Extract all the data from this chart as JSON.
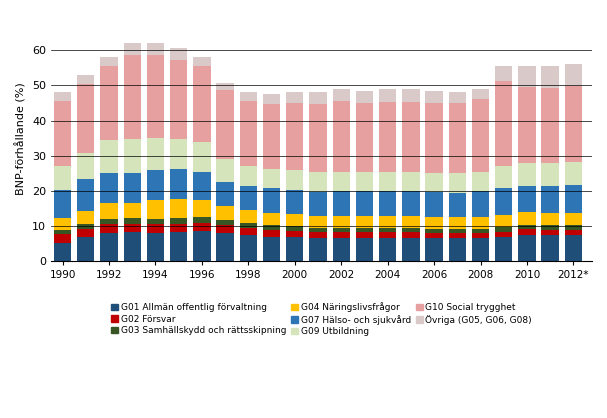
{
  "years": [
    1990,
    1991,
    1992,
    1993,
    1994,
    1995,
    1996,
    1997,
    1998,
    1999,
    2000,
    2001,
    2002,
    2003,
    2004,
    2005,
    2006,
    2007,
    2008,
    2009,
    2010,
    2011,
    2012
  ],
  "G01": [
    5.2,
    6.8,
    8.0,
    8.2,
    8.0,
    8.2,
    8.5,
    8.0,
    7.5,
    7.0,
    6.8,
    6.5,
    6.5,
    6.5,
    6.5,
    6.5,
    6.5,
    6.5,
    6.5,
    6.8,
    7.5,
    7.5,
    7.5
  ],
  "G02": [
    2.5,
    2.5,
    2.5,
    2.5,
    2.5,
    2.5,
    2.5,
    2.3,
    2.1,
    2.0,
    1.9,
    1.8,
    1.8,
    1.8,
    1.7,
    1.7,
    1.6,
    1.5,
    1.5,
    1.6,
    1.6,
    1.5,
    1.5
  ],
  "G03": [
    1.2,
    1.3,
    1.5,
    1.5,
    1.5,
    1.5,
    1.5,
    1.3,
    1.3,
    1.2,
    1.2,
    1.2,
    1.2,
    1.2,
    1.2,
    1.2,
    1.2,
    1.2,
    1.2,
    1.3,
    1.3,
    1.3,
    1.3
  ],
  "G04": [
    3.5,
    3.8,
    4.5,
    4.5,
    5.5,
    5.5,
    5.0,
    4.0,
    3.8,
    3.5,
    3.5,
    3.3,
    3.5,
    3.5,
    3.5,
    3.5,
    3.3,
    3.3,
    3.3,
    3.5,
    3.5,
    3.5,
    3.5
  ],
  "G07": [
    8.0,
    9.0,
    8.5,
    8.5,
    8.5,
    8.5,
    8.0,
    7.0,
    6.8,
    7.0,
    7.0,
    7.0,
    7.0,
    7.0,
    7.0,
    7.0,
    7.0,
    7.0,
    7.5,
    7.5,
    7.5,
    7.5,
    8.0
  ],
  "G09": [
    6.8,
    7.5,
    9.5,
    9.5,
    9.0,
    8.5,
    8.5,
    6.5,
    5.5,
    5.5,
    5.5,
    5.5,
    5.5,
    5.5,
    5.5,
    5.5,
    5.5,
    5.5,
    5.5,
    6.5,
    6.5,
    6.5,
    6.5
  ],
  "G10": [
    18.5,
    19.5,
    21.0,
    24.0,
    23.5,
    22.5,
    21.5,
    19.5,
    18.5,
    18.5,
    19.0,
    19.5,
    20.0,
    19.5,
    20.0,
    20.0,
    20.0,
    20.0,
    20.5,
    24.0,
    21.5,
    21.5,
    21.5
  ],
  "Ovriga": [
    2.3,
    2.6,
    2.5,
    3.3,
    3.5,
    3.3,
    2.5,
    2.0,
    2.6,
    2.8,
    3.1,
    3.2,
    3.5,
    3.5,
    3.6,
    3.6,
    3.4,
    3.0,
    3.0,
    4.3,
    6.1,
    6.2,
    6.2
  ],
  "colors": {
    "G01": "#1f4e79",
    "G02": "#c00000",
    "G03": "#375623",
    "G04": "#ffc000",
    "G07": "#2e75b6",
    "G09": "#d6e4bc",
    "G10": "#e6a0a0",
    "Ovriga": "#d9c9c9"
  },
  "legend_labels": {
    "G01": "G01 Allmän offentlig förvaltning",
    "G02": "G02 Försvar",
    "G03": "G03 Samhällskydd och rättsskipning",
    "G04": "G04 Näringslivsfrågor",
    "G07": "G07 Hälso- och sjukvård",
    "G09": "G09 Utbildning",
    "G10": "G10 Social trygghet",
    "Ovriga": "Övriga (G05, G06, G08)"
  },
  "ylabel": "BNP-förhållande (%)",
  "ylim": [
    0,
    70
  ],
  "yticks": [
    0,
    10,
    20,
    30,
    40,
    50,
    60
  ],
  "xtick_years": [
    1990,
    1992,
    1994,
    1996,
    1998,
    2000,
    2002,
    2004,
    2006,
    2008,
    2010,
    2012
  ],
  "background_color": "#ffffff"
}
